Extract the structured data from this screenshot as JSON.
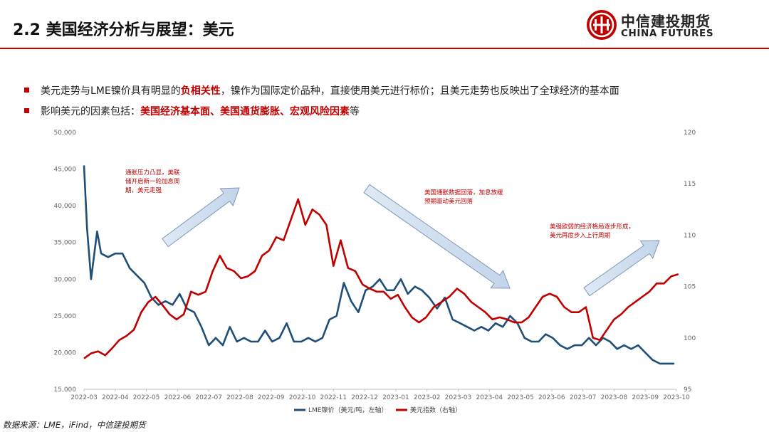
{
  "header": {
    "title": "2.2 美国经济分析与展望：美元",
    "logo_cn": "中信建投期货",
    "logo_en": "CHINA FUTURES",
    "accent_color": "#c00000"
  },
  "bullets": [
    {
      "pre": "美元走势与LME镍价具有明显的",
      "hl": "负相关性",
      "post": "，镍作为国际定价品种，直接使用美元进行标价；且美元走势也反映出了全球经济的基本面"
    },
    {
      "pre": "影响美元的因素包括：",
      "hl": "美国经济基本面、美国通货膨胀、宏观风险因素",
      "post": "等"
    }
  ],
  "source": "数据来源：LME，iFind，中信建投期货",
  "chart_data": {
    "type": "line",
    "x_ticks": [
      "2022-03",
      "2022-04",
      "2022-05",
      "2022-06",
      "2022-07",
      "2022-08",
      "2022-09",
      "2022-10",
      "2022-11",
      "2022-12",
      "2023-01",
      "2023-02",
      "2023-03",
      "2023-04",
      "2023-05",
      "2023-06",
      "2023-07",
      "2023-08",
      "2023-09",
      "2023-10"
    ],
    "y_left": {
      "min": 15000,
      "max": 50000,
      "ticks": [
        "15,000",
        "20,000",
        "25,000",
        "30,000",
        "35,000",
        "40,000",
        "45,000",
        "50,000"
      ]
    },
    "y_right": {
      "min": 95,
      "max": 120,
      "ticks": [
        "95",
        "100",
        "105",
        "110",
        "115",
        "120"
      ]
    },
    "legend_position": "bottom",
    "series": [
      {
        "name": "LME镍价（美元/吨，左轴）",
        "axis": "left",
        "color": "#1f4e79",
        "x": [
          "2022-03-01",
          "2022-03-04",
          "2022-03-08",
          "2022-03-14",
          "2022-03-18",
          "2022-03-25",
          "2022-04-01",
          "2022-04-08",
          "2022-04-15",
          "2022-04-22",
          "2022-04-29",
          "2022-05-06",
          "2022-05-13",
          "2022-05-20",
          "2022-05-27",
          "2022-06-03",
          "2022-06-10",
          "2022-06-17",
          "2022-06-24",
          "2022-07-01",
          "2022-07-08",
          "2022-07-15",
          "2022-07-22",
          "2022-07-29",
          "2022-08-05",
          "2022-08-12",
          "2022-08-19",
          "2022-08-26",
          "2022-09-02",
          "2022-09-09",
          "2022-09-16",
          "2022-09-23",
          "2022-09-30",
          "2022-10-07",
          "2022-10-14",
          "2022-10-21",
          "2022-10-28",
          "2022-11-04",
          "2022-11-11",
          "2022-11-18",
          "2022-11-25",
          "2022-12-02",
          "2022-12-09",
          "2022-12-16",
          "2022-12-23",
          "2022-12-30",
          "2023-01-06",
          "2023-01-13",
          "2023-01-20",
          "2023-01-27",
          "2023-02-03",
          "2023-02-10",
          "2023-02-17",
          "2023-02-24",
          "2023-03-03",
          "2023-03-10",
          "2023-03-17",
          "2023-03-24",
          "2023-03-31",
          "2023-04-07",
          "2023-04-14",
          "2023-04-21",
          "2023-04-28",
          "2023-05-05",
          "2023-05-12",
          "2023-05-19",
          "2023-05-26",
          "2023-06-02",
          "2023-06-09",
          "2023-06-16",
          "2023-06-23",
          "2023-06-30",
          "2023-07-07",
          "2023-07-14",
          "2023-07-21",
          "2023-07-28",
          "2023-08-04",
          "2023-08-11",
          "2023-08-18",
          "2023-08-25",
          "2023-09-01",
          "2023-09-08",
          "2023-09-15",
          "2023-09-22",
          "2023-09-29"
        ],
        "values": [
          45500,
          37000,
          30000,
          36500,
          33500,
          33000,
          33500,
          33500,
          31500,
          30500,
          29500,
          27500,
          26500,
          27000,
          26500,
          28000,
          26000,
          25500,
          23500,
          21000,
          22000,
          21000,
          23500,
          21500,
          22000,
          21500,
          21500,
          23000,
          21500,
          22000,
          24000,
          21500,
          21500,
          22000,
          21500,
          22000,
          24500,
          25000,
          29500,
          27000,
          25500,
          28500,
          29000,
          30000,
          28500,
          28500,
          30000,
          28000,
          29000,
          28500,
          27500,
          26000,
          27500,
          24500,
          24000,
          23500,
          23000,
          23500,
          23000,
          24000,
          23500,
          25000,
          24000,
          22000,
          21500,
          21500,
          22500,
          22000,
          21000,
          20500,
          21000,
          21000,
          22000,
          21000,
          22000,
          21500,
          20500,
          21000,
          20500,
          21000,
          20000,
          19000,
          18500,
          18500,
          18500
        ]
      },
      {
        "name": "美元指数（右轴）",
        "axis": "right",
        "color": "#c00000",
        "x": [
          "2022-03-01",
          "2022-03-08",
          "2022-03-15",
          "2022-03-22",
          "2022-03-29",
          "2022-04-05",
          "2022-04-12",
          "2022-04-19",
          "2022-04-26",
          "2022-05-03",
          "2022-05-10",
          "2022-05-17",
          "2022-05-24",
          "2022-05-31",
          "2022-06-07",
          "2022-06-14",
          "2022-06-21",
          "2022-06-28",
          "2022-07-05",
          "2022-07-12",
          "2022-07-19",
          "2022-07-26",
          "2022-08-02",
          "2022-08-09",
          "2022-08-16",
          "2022-08-23",
          "2022-08-30",
          "2022-09-06",
          "2022-09-13",
          "2022-09-20",
          "2022-09-27",
          "2022-10-04",
          "2022-10-11",
          "2022-10-18",
          "2022-10-25",
          "2022-11-01",
          "2022-11-08",
          "2022-11-15",
          "2022-11-22",
          "2022-11-29",
          "2022-12-06",
          "2022-12-13",
          "2022-12-20",
          "2022-12-27",
          "2023-01-03",
          "2023-01-10",
          "2023-01-17",
          "2023-01-24",
          "2023-01-31",
          "2023-02-07",
          "2023-02-14",
          "2023-02-21",
          "2023-02-28",
          "2023-03-07",
          "2023-03-14",
          "2023-03-21",
          "2023-03-28",
          "2023-04-04",
          "2023-04-11",
          "2023-04-18",
          "2023-04-25",
          "2023-05-02",
          "2023-05-09",
          "2023-05-16",
          "2023-05-23",
          "2023-05-30",
          "2023-06-06",
          "2023-06-13",
          "2023-06-20",
          "2023-06-27",
          "2023-07-04",
          "2023-07-11",
          "2023-07-18",
          "2023-07-25",
          "2023-08-01",
          "2023-08-08",
          "2023-08-15",
          "2023-08-22",
          "2023-08-29",
          "2023-09-05",
          "2023-09-12",
          "2023-09-19",
          "2023-09-26",
          "2023-10-03"
        ],
        "values": [
          98.0,
          98.5,
          98.7,
          98.3,
          99.0,
          99.8,
          100.2,
          100.8,
          102.5,
          103.5,
          104.0,
          103.2,
          102.3,
          101.8,
          102.3,
          104.5,
          104.2,
          104.5,
          106.5,
          108.0,
          106.8,
          106.5,
          105.8,
          106.0,
          106.5,
          108.0,
          108.5,
          109.8,
          109.5,
          111.5,
          113.5,
          111.0,
          112.5,
          112.0,
          111.0,
          107.0,
          109.5,
          106.8,
          106.5,
          105.2,
          104.8,
          104.5,
          104.5,
          103.8,
          104.2,
          103.0,
          102.0,
          101.5,
          102.0,
          103.0,
          103.5,
          104.0,
          104.8,
          104.3,
          103.5,
          103.0,
          102.5,
          101.8,
          102.0,
          101.8,
          101.5,
          101.5,
          102.0,
          103.0,
          104.0,
          104.3,
          104.0,
          103.0,
          102.5,
          102.5,
          103.0,
          100.0,
          99.8,
          100.8,
          101.8,
          102.3,
          103.0,
          103.5,
          104.0,
          104.5,
          105.3,
          105.3,
          106.0,
          106.2
        ]
      }
    ],
    "annotations": [
      {
        "text": "通胀压力凸显，美联储开启新一轮加息周期，美元走强",
        "lines": [
          "通胀压力凸显，美联",
          "储开启新一轮加息周",
          "期，美元走强"
        ],
        "color": "#c00000"
      },
      {
        "text": "美国通胀数据回落，加息放缓预期驱动美元回落",
        "lines": [
          "美国通胀数据回落，加息放缓",
          "预期驱动美元回落"
        ],
        "color": "#c00000"
      },
      {
        "text": "美强欧弱的经济格局逐步形成，美元再度步入上行周期",
        "lines": [
          "美强欧弱的经济格局逐步形成，",
          "美元再度步入上行周期"
        ],
        "color": "#c00000"
      }
    ]
  }
}
